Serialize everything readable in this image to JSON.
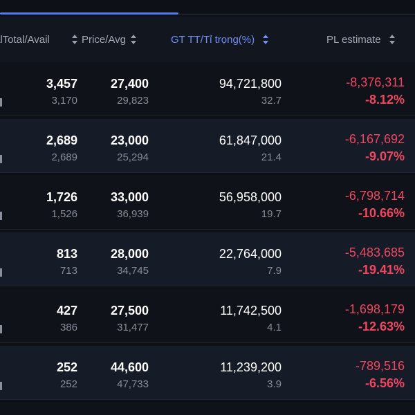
{
  "header": {
    "total_avail": "alTotal/Avail",
    "price_avg": "Price/Avg",
    "value_weight": "GT TT/Tỉ trọng(%)",
    "pl_estimate": "PL estimate"
  },
  "rows": [
    {
      "qty_total": "3,457",
      "qty_avail": "3,170",
      "price": "27,400",
      "avg": "29,823",
      "value": "94,721,800",
      "weight": "32.7",
      "pl": "-8,376,311",
      "pl_pct": "-8.12%"
    },
    {
      "qty_total": "2,689",
      "qty_avail": "2,689",
      "price": "23,000",
      "avg": "25,294",
      "value": "61,847,000",
      "weight": "21.4",
      "pl": "-6,167,692",
      "pl_pct": "-9.07%"
    },
    {
      "qty_total": "1,726",
      "qty_avail": "1,526",
      "price": "33,000",
      "avg": "36,939",
      "value": "56,958,000",
      "weight": "19.7",
      "pl": "-6,798,714",
      "pl_pct": "-10.66%"
    },
    {
      "qty_total": "813",
      "qty_avail": "713",
      "price": "28,000",
      "avg": "34,745",
      "value": "22,764,000",
      "weight": "7.9",
      "pl": "-5,483,685",
      "pl_pct": "-19.41%"
    },
    {
      "qty_total": "427",
      "qty_avail": "386",
      "price": "27,500",
      "avg": "31,477",
      "value": "11,742,500",
      "weight": "4.1",
      "pl": "-1,698,179",
      "pl_pct": "-12.63%"
    },
    {
      "qty_total": "252",
      "qty_avail": "252",
      "price": "44,600",
      "avg": "47,733",
      "value": "11,239,200",
      "weight": "3.9",
      "pl": "-789,516",
      "pl_pct": "-6.56%"
    }
  ],
  "colors": {
    "accent": "#4f7df5",
    "negative": "#f0475f",
    "background": "#0d1117"
  }
}
